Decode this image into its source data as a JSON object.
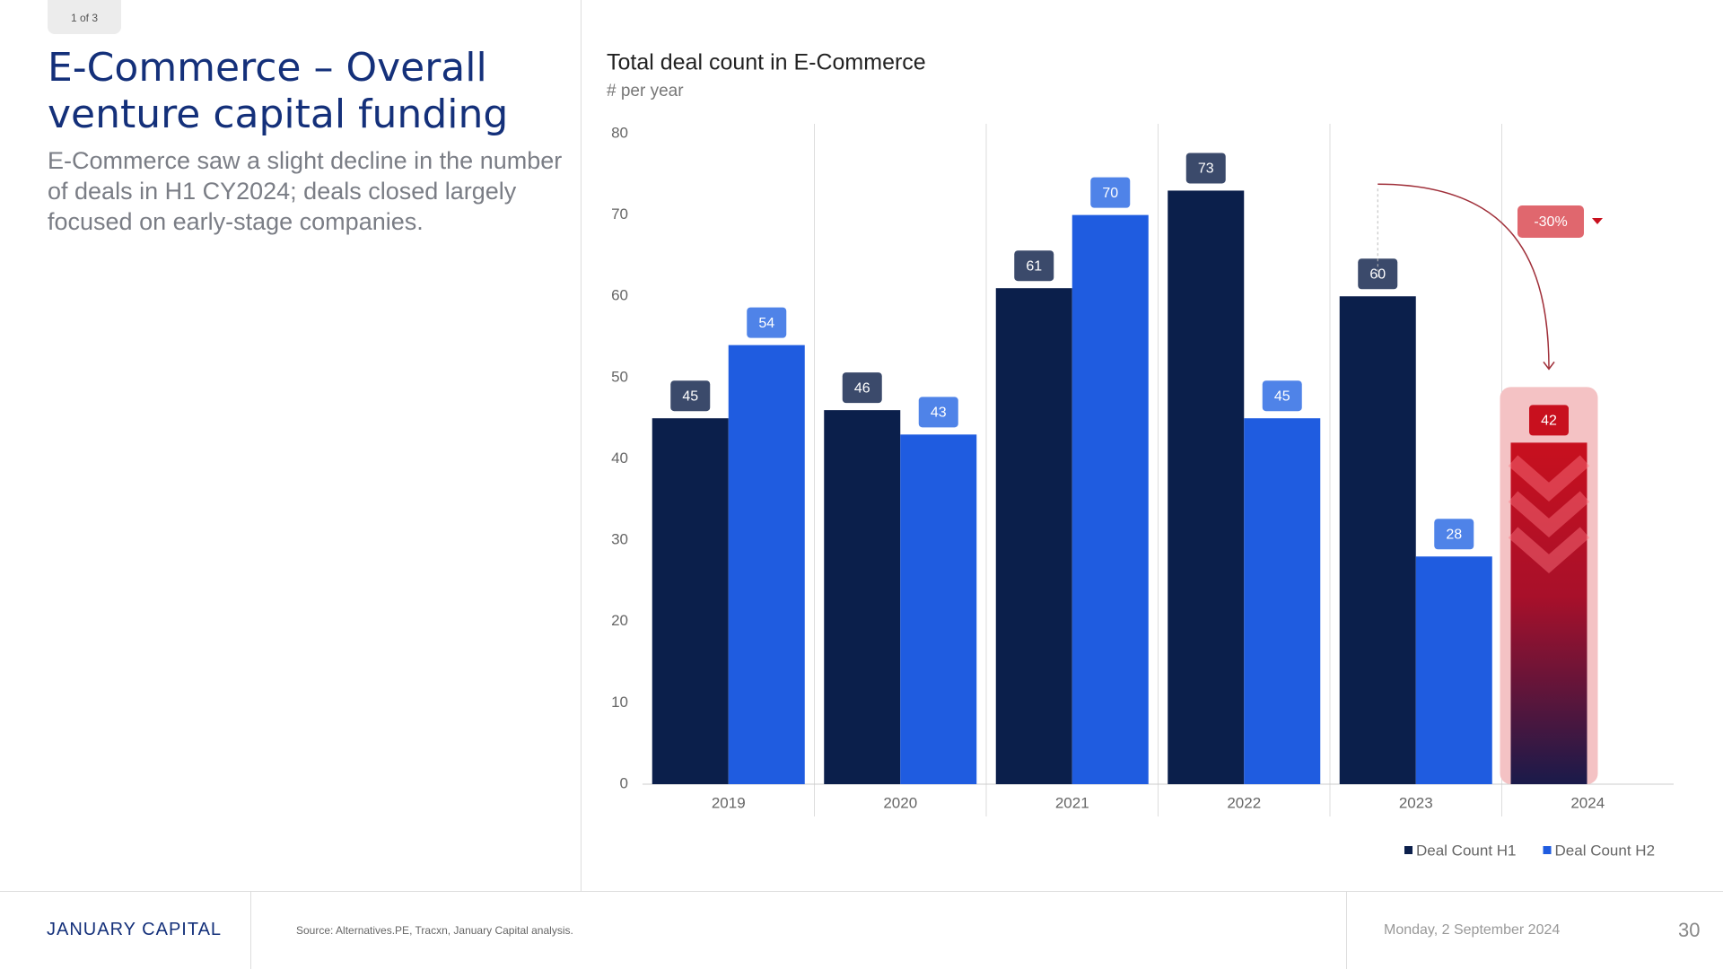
{
  "page": {
    "badge": "1 of 3",
    "title": "E-Commerce – Overall venture capital funding",
    "subtitle": "E-Commerce saw a slight decline in the number of deals in H1 CY2024; deals closed largely focused on early-stage companies.",
    "footer": {
      "brand": "JANUARY CAPITAL",
      "source": "Source: Alternatives.PE, Tracxn, January Capital analysis.",
      "date": "Monday, 2 September 2024",
      "page_number": "30"
    }
  },
  "chart_data": {
    "type": "bar",
    "title": "Total deal count in E-Commerce",
    "subtitle": "# per year",
    "categories": [
      "2019",
      "2020",
      "2021",
      "2022",
      "2023",
      "2024"
    ],
    "series": [
      {
        "name": "Deal Count H1",
        "color": "#0b1f4b",
        "label_color": "#3b4a6b",
        "values": [
          45,
          46,
          61,
          73,
          60,
          42
        ]
      },
      {
        "name": "Deal Count H2",
        "color": "#1f5ce0",
        "label_color": "#4f83e8",
        "values": [
          54,
          43,
          70,
          45,
          28,
          null
        ]
      }
    ],
    "highlight_color": "#c8101e",
    "annotation": "-30%",
    "ylim": [
      0,
      80
    ],
    "yticks": [
      0,
      10,
      20,
      30,
      40,
      50,
      60,
      70,
      80
    ],
    "grid": false,
    "legend": "bottom-right"
  }
}
